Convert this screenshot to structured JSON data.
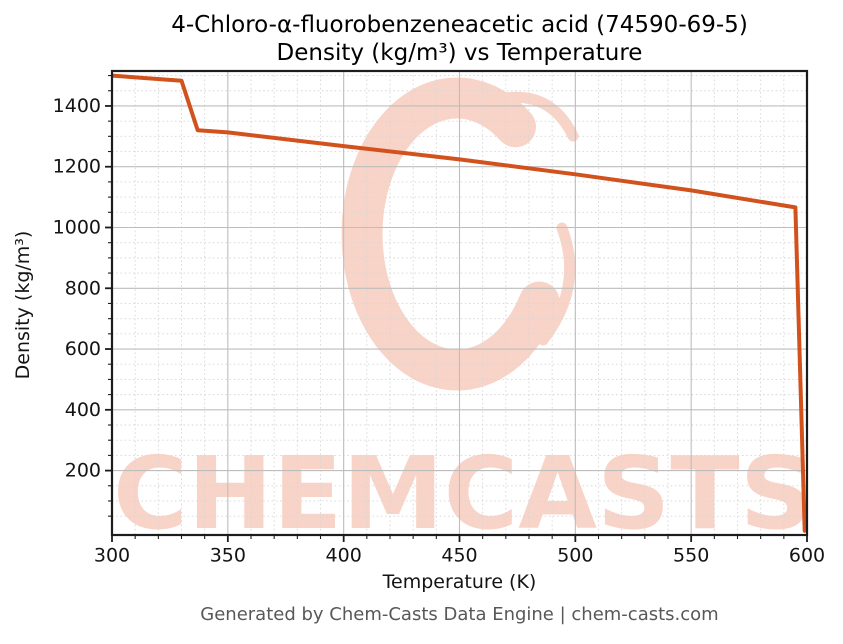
{
  "title": {
    "line1": "4-Chloro-α-fluorobenzeneacetic acid (74590-69-5)",
    "line2": "Density (kg/m³) vs Temperature"
  },
  "x_axis": {
    "label": "Temperature (K)",
    "ticks": [
      300,
      350,
      400,
      450,
      500,
      550,
      600
    ],
    "minor_step": 10,
    "lim": [
      300,
      600
    ]
  },
  "y_axis": {
    "label": "Density (kg/m³)",
    "ticks": [
      200,
      400,
      600,
      800,
      1000,
      1200,
      1400
    ],
    "minor_step": 50,
    "minor_max": 1500,
    "lim": [
      -12,
      1515
    ]
  },
  "footer": {
    "text": "Generated by Chem-Casts Data Engine | chem-casts.com"
  },
  "watermark": {
    "text": "CHEMCASTS",
    "color": "#f8d4c8"
  },
  "colors": {
    "line": "#d2521d",
    "grid_major": "#bdbdbd",
    "grid_minor": "#d6d6d6",
    "spine": "#1c1c1c",
    "tick_label": "#141414",
    "text": "#000000",
    "muted": "#585858"
  },
  "chart_data": {
    "type": "line",
    "title": "4-Chloro-α-fluorobenzeneacetic acid (74590-69-5) — Density (kg/m³) vs Temperature",
    "xlabel": "Temperature (K)",
    "ylabel": "Density (kg/m³)",
    "xlim": [
      300,
      600
    ],
    "ylim": [
      -12,
      1515
    ],
    "grid": true,
    "legend_position": "none",
    "series": [
      {
        "name": "density",
        "x": [
          300,
          330,
          337,
          350,
          400,
          450,
          500,
          550,
          595,
          599
        ],
        "y": [
          1500,
          1483,
          1320,
          1313,
          1268,
          1224,
          1175,
          1122,
          1066,
          2
        ]
      }
    ]
  }
}
